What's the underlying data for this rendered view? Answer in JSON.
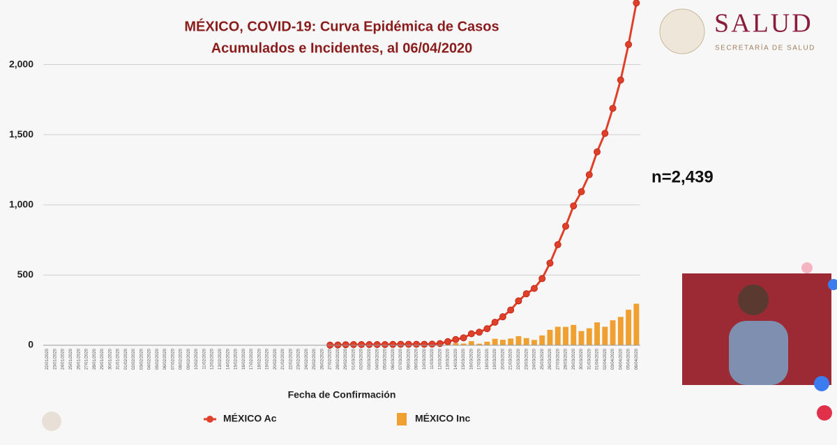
{
  "header": {
    "logo_title": "SALUD",
    "logo_subtitle": "SECRETARÍA DE SALUD"
  },
  "annotation": "n=2,439",
  "chart_data": {
    "type": "combo",
    "title": [
      "MÉXICO, COVID-19: Curva Epidémica de Casos",
      "Acumulados e Incidentes, al 06/04/2020"
    ],
    "x_label": "Fecha de Confirmación",
    "categories": [
      "22/01/2020",
      "23/01/2020",
      "24/01/2020",
      "25/01/2020",
      "26/01/2020",
      "27/01/2020",
      "28/01/2020",
      "29/01/2020",
      "30/01/2020",
      "31/01/2020",
      "01/02/2020",
      "02/02/2020",
      "03/02/2020",
      "04/02/2020",
      "05/02/2020",
      "06/02/2020",
      "07/02/2020",
      "08/02/2020",
      "09/02/2020",
      "10/02/2020",
      "11/02/2020",
      "12/02/2020",
      "13/02/2020",
      "14/02/2020",
      "15/02/2020",
      "16/02/2020",
      "17/02/2020",
      "18/02/2020",
      "19/02/2020",
      "20/02/2020",
      "21/02/2020",
      "22/02/2020",
      "23/02/2020",
      "24/02/2020",
      "25/02/2020",
      "26/02/2020",
      "27/02/2020",
      "28/02/2020",
      "29/02/2020",
      "01/03/2020",
      "02/03/2020",
      "03/03/2020",
      "04/03/2020",
      "05/03/2020",
      "06/03/2020",
      "07/03/2020",
      "08/03/2020",
      "09/03/2020",
      "10/03/2020",
      "11/03/2020",
      "12/03/2020",
      "13/03/2020",
      "14/03/2020",
      "15/03/2020",
      "16/03/2020",
      "17/03/2020",
      "18/03/2020",
      "19/03/2020",
      "20/03/2020",
      "21/03/2020",
      "22/03/2020",
      "23/03/2020",
      "24/03/2020",
      "25/03/2020",
      "26/03/2020",
      "27/03/2020",
      "28/03/2020",
      "29/03/2020",
      "30/03/2020",
      "31/03/2020",
      "01/04/2020",
      "02/04/2020",
      "03/04/2020",
      "04/04/2020",
      "05/04/2020",
      "06/04/2020"
    ],
    "series": [
      {
        "name": "MÉXICO Inc",
        "type": "bar",
        "color": "#f0a030",
        "values": [
          null,
          null,
          null,
          null,
          null,
          null,
          null,
          null,
          null,
          null,
          null,
          null,
          null,
          null,
          null,
          null,
          null,
          null,
          null,
          null,
          null,
          null,
          null,
          null,
          null,
          null,
          null,
          null,
          null,
          null,
          null,
          null,
          null,
          null,
          null,
          null,
          1,
          1,
          2,
          1,
          0,
          0,
          0,
          0,
          1,
          1,
          0,
          0,
          0,
          1,
          4,
          14,
          15,
          12,
          29,
          11,
          25,
          46,
          39,
          48,
          65,
          51,
          38,
          70,
          110,
          132,
          131,
          145,
          101,
          121,
          163,
          132,
          178,
          202,
          253,
          296
        ]
      },
      {
        "name": "MÉXICO Ac",
        "type": "line",
        "color": "#e0402a",
        "values": [
          null,
          null,
          null,
          null,
          null,
          null,
          null,
          null,
          null,
          null,
          null,
          null,
          null,
          null,
          null,
          null,
          null,
          null,
          null,
          null,
          null,
          null,
          null,
          null,
          null,
          null,
          null,
          null,
          null,
          null,
          null,
          null,
          null,
          null,
          null,
          null,
          1,
          2,
          4,
          5,
          5,
          5,
          5,
          5,
          6,
          7,
          7,
          7,
          7,
          8,
          12,
          26,
          41,
          53,
          82,
          93,
          118,
          164,
          203,
          251,
          316,
          367,
          405,
          475,
          585,
          717,
          848,
          993,
          1094,
          1215,
          1378,
          1510,
          1688,
          1890,
          2143,
          2439
        ]
      }
    ],
    "ylim": [
      0,
      2460
    ],
    "yticks": [
      0,
      500,
      {
        "value": 1000,
        "label": "1,000"
      },
      {
        "value": 1500,
        "label": "1,500"
      },
      {
        "value": 2000,
        "label": "2,000"
      }
    ],
    "grid": true
  }
}
